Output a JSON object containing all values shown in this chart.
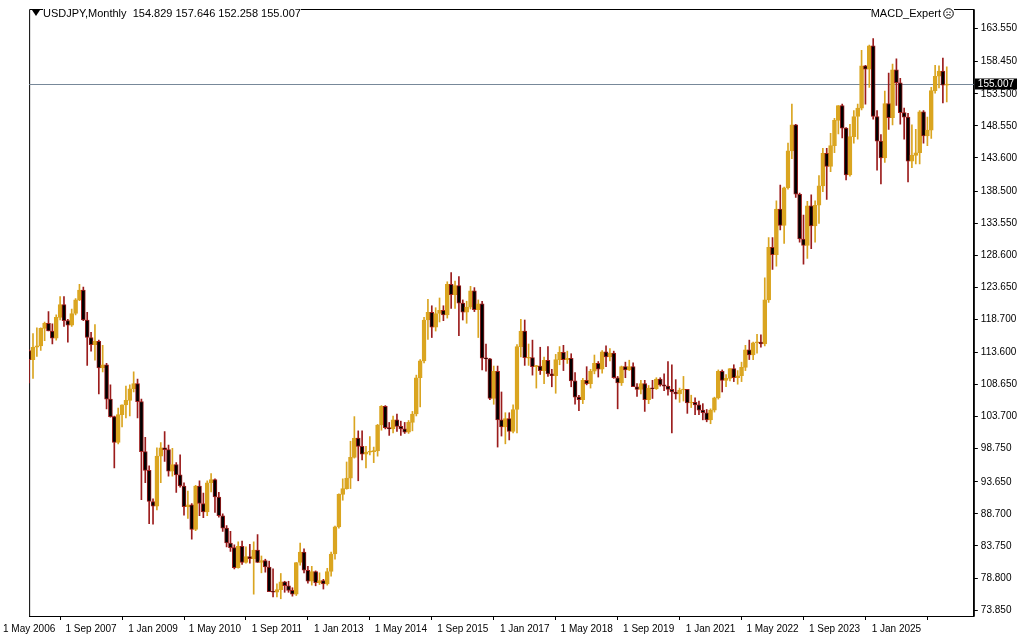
{
  "chart_data": {
    "type": "candlestick",
    "title": "USDJPY,Monthly  154.829 157.646 152.258 155.007",
    "annotations": [
      "MACD_Expert"
    ],
    "x": [
      "2006-05",
      "2006-06",
      "2006-07",
      "2006-08",
      "2006-09",
      "2006-10",
      "2006-11",
      "2006-12",
      "2007-01",
      "2007-02",
      "2007-03",
      "2007-04",
      "2007-05",
      "2007-06",
      "2007-07",
      "2007-08",
      "2007-09",
      "2007-10",
      "2007-11",
      "2007-12",
      "2008-01",
      "2008-02",
      "2008-03",
      "2008-04",
      "2008-05",
      "2008-06",
      "2008-07",
      "2008-08",
      "2008-09",
      "2008-10",
      "2008-11",
      "2008-12",
      "2009-01",
      "2009-02",
      "2009-03",
      "2009-04",
      "2009-05",
      "2009-06",
      "2009-07",
      "2009-08",
      "2009-09",
      "2009-10",
      "2009-11",
      "2009-12",
      "2010-01",
      "2010-02",
      "2010-03",
      "2010-04",
      "2010-05",
      "2010-06",
      "2010-07",
      "2010-08",
      "2010-09",
      "2010-10",
      "2010-11",
      "2010-12",
      "2011-01",
      "2011-02",
      "2011-03",
      "2011-04",
      "2011-05",
      "2011-06",
      "2011-07",
      "2011-08",
      "2011-09",
      "2011-10",
      "2011-11",
      "2011-12",
      "2012-01",
      "2012-02",
      "2012-03",
      "2012-04",
      "2012-05",
      "2012-06",
      "2012-07",
      "2012-08",
      "2012-09",
      "2012-10",
      "2012-11",
      "2012-12",
      "2013-01",
      "2013-02",
      "2013-03",
      "2013-04",
      "2013-05",
      "2013-06",
      "2013-07",
      "2013-08",
      "2013-09",
      "2013-10",
      "2013-11",
      "2013-12",
      "2014-01",
      "2014-02",
      "2014-03",
      "2014-04",
      "2014-05",
      "2014-06",
      "2014-07",
      "2014-08",
      "2014-09",
      "2014-10",
      "2014-11",
      "2014-12",
      "2015-01",
      "2015-02",
      "2015-03",
      "2015-04",
      "2015-05",
      "2015-06",
      "2015-07",
      "2015-08",
      "2015-09",
      "2015-10",
      "2015-11",
      "2015-12",
      "2016-01",
      "2016-02",
      "2016-03",
      "2016-04",
      "2016-05",
      "2016-06",
      "2016-07",
      "2016-08",
      "2016-09",
      "2016-10",
      "2016-11",
      "2016-12",
      "2017-01",
      "2017-02",
      "2017-03",
      "2017-04",
      "2017-05",
      "2017-06",
      "2017-07",
      "2017-08",
      "2017-09",
      "2017-10",
      "2017-11",
      "2017-12",
      "2018-01",
      "2018-02",
      "2018-03",
      "2018-04",
      "2018-05",
      "2018-06",
      "2018-07",
      "2018-08",
      "2018-09",
      "2018-10",
      "2018-11",
      "2018-12",
      "2019-01",
      "2019-02",
      "2019-03",
      "2019-04",
      "2019-05",
      "2019-06",
      "2019-07",
      "2019-08",
      "2019-09",
      "2019-10",
      "2019-11",
      "2019-12",
      "2020-01",
      "2020-02",
      "2020-03",
      "2020-04",
      "2020-05",
      "2020-06",
      "2020-07",
      "2020-08",
      "2020-09",
      "2020-10",
      "2020-11",
      "2020-12",
      "2021-01",
      "2021-02",
      "2021-03",
      "2021-04",
      "2021-05",
      "2021-06",
      "2021-07",
      "2021-08",
      "2021-09",
      "2021-10",
      "2021-11",
      "2021-12",
      "2022-01",
      "2022-02",
      "2022-03",
      "2022-04",
      "2022-05",
      "2022-06",
      "2022-07",
      "2022-08",
      "2022-09",
      "2022-10",
      "2022-11",
      "2022-12",
      "2023-01",
      "2023-02",
      "2023-03",
      "2023-04",
      "2023-05",
      "2023-06",
      "2023-07",
      "2023-08",
      "2023-09",
      "2023-10",
      "2023-11",
      "2023-12",
      "2024-01",
      "2024-02",
      "2024-03",
      "2024-04",
      "2024-05",
      "2024-06",
      "2024-07",
      "2024-08",
      "2024-09",
      "2024-10",
      "2024-11",
      "2024-12",
      "2025-01",
      "2025-02",
      "2025-03",
      "2025-04",
      "2025-05",
      "2025-06",
      "2025-07",
      "2025-08",
      "2025-09",
      "2025-10",
      "2025-11",
      "2025-12",
      "2026-01",
      "2026-02"
    ],
    "ohlc": [
      [
        113.9,
        114.0,
        108.9,
        112.5
      ],
      [
        112.5,
        116.5,
        109.6,
        114.4
      ],
      [
        114.4,
        117.4,
        113.0,
        114.6
      ],
      [
        114.6,
        117.4,
        113.9,
        117.3
      ],
      [
        117.3,
        118.3,
        115.4,
        118.1
      ],
      [
        118.1,
        119.9,
        116.9,
        116.9
      ],
      [
        116.9,
        118.0,
        114.9,
        115.8
      ],
      [
        115.8,
        119.4,
        115.5,
        119.0
      ],
      [
        119.0,
        122.2,
        118.6,
        121.0
      ],
      [
        121.0,
        122.2,
        117.6,
        118.5
      ],
      [
        118.5,
        118.7,
        115.2,
        117.8
      ],
      [
        117.8,
        120.3,
        117.6,
        119.6
      ],
      [
        119.6,
        121.9,
        119.4,
        121.7
      ],
      [
        121.7,
        124.1,
        121.6,
        123.2
      ],
      [
        123.2,
        123.7,
        118.5,
        118.6
      ],
      [
        118.6,
        119.8,
        111.6,
        115.9
      ],
      [
        115.9,
        116.7,
        113.8,
        114.8
      ],
      [
        114.8,
        117.9,
        112.4,
        115.3
      ],
      [
        115.3,
        115.5,
        107.2,
        111.2
      ],
      [
        111.2,
        114.7,
        110.6,
        111.7
      ],
      [
        111.7,
        111.9,
        104.9,
        106.4
      ],
      [
        106.4,
        108.6,
        103.6,
        103.7
      ],
      [
        103.7,
        103.8,
        95.8,
        99.7
      ],
      [
        99.7,
        105.0,
        99.5,
        104.0
      ],
      [
        104.0,
        105.5,
        102.1,
        105.5
      ],
      [
        105.5,
        108.4,
        103.5,
        106.2
      ],
      [
        106.2,
        108.6,
        103.8,
        108.0
      ],
      [
        108.0,
        110.6,
        107.5,
        108.8
      ],
      [
        108.8,
        109.5,
        103.5,
        106.0
      ],
      [
        106.0,
        106.4,
        90.9,
        98.3
      ],
      [
        98.3,
        100.5,
        93.5,
        95.4
      ],
      [
        95.4,
        96.1,
        87.2,
        90.6
      ],
      [
        90.6,
        91.0,
        87.1,
        89.9
      ],
      [
        89.9,
        98.9,
        89.3,
        97.6
      ],
      [
        97.6,
        99.7,
        93.5,
        98.9
      ],
      [
        98.9,
        101.4,
        96.8,
        98.6
      ],
      [
        98.6,
        99.3,
        94.5,
        95.3
      ],
      [
        95.3,
        98.8,
        94.5,
        96.3
      ],
      [
        96.3,
        96.6,
        92.0,
        94.7
      ],
      [
        94.7,
        97.8,
        92.8,
        93.0
      ],
      [
        93.0,
        93.5,
        88.5,
        89.8
      ],
      [
        89.8,
        92.2,
        88.0,
        90.1
      ],
      [
        90.1,
        90.3,
        84.8,
        86.3
      ],
      [
        86.3,
        93.1,
        86.1,
        93.0
      ],
      [
        93.0,
        93.8,
        88.4,
        90.3
      ],
      [
        90.3,
        91.9,
        88.1,
        89.0
      ],
      [
        89.0,
        93.8,
        88.4,
        93.5
      ],
      [
        93.5,
        94.9,
        92.1,
        94.0
      ],
      [
        94.0,
        94.1,
        88.9,
        91.3
      ],
      [
        91.3,
        92.0,
        88.2,
        88.4
      ],
      [
        88.4,
        88.7,
        86.0,
        86.5
      ],
      [
        86.5,
        86.9,
        83.6,
        84.2
      ],
      [
        84.2,
        86.0,
        82.9,
        83.5
      ],
      [
        83.5,
        83.9,
        80.2,
        80.4
      ],
      [
        80.4,
        84.4,
        80.3,
        83.7
      ],
      [
        83.7,
        84.5,
        80.9,
        81.2
      ],
      [
        81.2,
        83.6,
        81.1,
        82.1
      ],
      [
        82.1,
        84.0,
        81.1,
        81.8
      ],
      [
        81.8,
        84.4,
        76.3,
        83.1
      ],
      [
        83.1,
        85.5,
        81.2,
        81.2
      ],
      [
        81.2,
        82.2,
        79.6,
        81.5
      ],
      [
        81.5,
        81.7,
        79.7,
        80.5
      ],
      [
        80.5,
        81.4,
        76.7,
        76.7
      ],
      [
        76.7,
        80.2,
        75.9,
        76.6
      ],
      [
        76.6,
        77.9,
        75.9,
        77.0
      ],
      [
        77.0,
        79.5,
        75.6,
        78.2
      ],
      [
        78.2,
        78.3,
        76.6,
        77.6
      ],
      [
        77.6,
        78.3,
        76.6,
        76.9
      ],
      [
        76.9,
        77.3,
        76.0,
        76.3
      ],
      [
        76.3,
        81.2,
        76.1,
        81.2
      ],
      [
        81.2,
        84.2,
        80.8,
        82.8
      ],
      [
        82.8,
        83.3,
        79.6,
        80.0
      ],
      [
        80.0,
        80.6,
        78.0,
        78.3
      ],
      [
        78.3,
        80.6,
        77.7,
        79.8
      ],
      [
        79.8,
        79.9,
        77.6,
        78.1
      ],
      [
        78.1,
        79.6,
        77.8,
        78.4
      ],
      [
        78.4,
        78.6,
        77.1,
        77.9
      ],
      [
        77.9,
        80.3,
        77.7,
        79.8
      ],
      [
        79.8,
        82.8,
        79.1,
        82.5
      ],
      [
        82.5,
        86.8,
        81.7,
        86.7
      ],
      [
        86.7,
        91.8,
        86.5,
        91.7
      ],
      [
        91.7,
        94.1,
        90.8,
        92.6
      ],
      [
        92.6,
        96.7,
        92.5,
        94.2
      ],
      [
        94.2,
        99.9,
        92.6,
        97.4
      ],
      [
        97.4,
        103.7,
        97.3,
        100.4
      ],
      [
        100.4,
        101.5,
        93.8,
        99.1
      ],
      [
        99.1,
        101.5,
        97.0,
        97.9
      ],
      [
        97.9,
        99.1,
        95.8,
        98.2
      ],
      [
        98.2,
        100.6,
        97.8,
        98.3
      ],
      [
        98.3,
        99.0,
        96.6,
        98.4
      ],
      [
        98.4,
        102.5,
        97.6,
        102.4
      ],
      [
        102.4,
        105.4,
        101.6,
        105.3
      ],
      [
        105.3,
        105.4,
        101.8,
        102.0
      ],
      [
        102.0,
        102.8,
        100.8,
        101.8
      ],
      [
        101.8,
        103.8,
        101.2,
        103.2
      ],
      [
        103.2,
        104.1,
        101.4,
        102.2
      ],
      [
        102.2,
        103.0,
        100.8,
        101.8
      ],
      [
        101.8,
        102.8,
        101.1,
        101.3
      ],
      [
        101.3,
        103.1,
        101.1,
        102.8
      ],
      [
        102.8,
        104.5,
        101.5,
        104.1
      ],
      [
        104.1,
        110.1,
        103.8,
        109.7
      ],
      [
        109.7,
        112.5,
        105.2,
        112.3
      ],
      [
        112.3,
        119.0,
        112.0,
        118.6
      ],
      [
        118.6,
        121.8,
        115.6,
        119.8
      ],
      [
        119.8,
        120.8,
        115.9,
        117.5
      ],
      [
        117.5,
        120.5,
        116.9,
        119.6
      ],
      [
        119.6,
        122.0,
        118.3,
        120.1
      ],
      [
        120.1,
        120.8,
        118.5,
        119.4
      ],
      [
        119.4,
        124.5,
        118.9,
        124.1
      ],
      [
        124.1,
        125.9,
        120.4,
        122.5
      ],
      [
        122.5,
        124.6,
        120.4,
        123.9
      ],
      [
        123.9,
        125.3,
        116.2,
        121.2
      ],
      [
        121.2,
        121.7,
        118.6,
        119.8
      ],
      [
        119.8,
        121.5,
        118.1,
        120.6
      ],
      [
        120.6,
        123.8,
        120.3,
        123.1
      ],
      [
        123.1,
        123.6,
        119.9,
        120.2
      ],
      [
        120.2,
        121.7,
        115.9,
        121.1
      ],
      [
        121.1,
        121.5,
        110.9,
        112.7
      ],
      [
        112.7,
        114.9,
        110.7,
        112.6
      ],
      [
        112.6,
        112.7,
        106.3,
        106.5
      ],
      [
        106.5,
        111.5,
        105.6,
        110.7
      ],
      [
        110.7,
        111.5,
        99.0,
        103.2
      ],
      [
        103.2,
        107.5,
        100.7,
        102.1
      ],
      [
        102.1,
        104.3,
        99.5,
        103.4
      ],
      [
        103.4,
        104.3,
        100.1,
        101.4
      ],
      [
        101.4,
        105.5,
        101.2,
        104.8
      ],
      [
        104.8,
        114.8,
        101.2,
        114.5
      ],
      [
        114.5,
        118.7,
        112.9,
        116.9
      ],
      [
        116.9,
        118.6,
        111.6,
        112.8
      ],
      [
        112.7,
        114.9,
        111.6,
        112.8
      ],
      [
        112.8,
        115.5,
        110.1,
        111.4
      ],
      [
        111.4,
        111.6,
        108.1,
        111.5
      ],
      [
        111.5,
        114.4,
        110.2,
        110.8
      ],
      [
        110.8,
        112.9,
        108.8,
        112.4
      ],
      [
        112.4,
        114.5,
        109.9,
        110.3
      ],
      [
        110.3,
        111.0,
        108.3,
        110.0
      ],
      [
        110.0,
        113.3,
        107.3,
        112.5
      ],
      [
        112.5,
        114.5,
        111.7,
        113.6
      ],
      [
        113.6,
        114.7,
        110.8,
        112.5
      ],
      [
        112.5,
        113.8,
        111.9,
        112.7
      ],
      [
        112.7,
        113.4,
        108.3,
        109.2
      ],
      [
        109.2,
        110.5,
        105.6,
        106.7
      ],
      [
        106.7,
        107.0,
        104.6,
        106.3
      ],
      [
        106.3,
        109.6,
        105.7,
        109.3
      ],
      [
        109.3,
        111.4,
        108.6,
        108.8
      ],
      [
        108.8,
        111.0,
        108.1,
        110.7
      ],
      [
        110.7,
        113.2,
        110.3,
        111.9
      ],
      [
        111.9,
        112.2,
        109.8,
        111.0
      ],
      [
        111.0,
        113.9,
        110.4,
        113.7
      ],
      [
        113.7,
        114.6,
        111.4,
        112.9
      ],
      [
        112.9,
        114.2,
        112.3,
        113.5
      ],
      [
        113.5,
        113.8,
        109.6,
        109.7
      ],
      [
        109.7,
        109.9,
        104.9,
        108.9
      ],
      [
        108.9,
        111.5,
        108.5,
        111.4
      ],
      [
        111.4,
        112.1,
        109.7,
        110.9
      ],
      [
        110.9,
        112.4,
        110.8,
        111.4
      ],
      [
        111.4,
        112.0,
        108.3,
        108.3
      ],
      [
        108.3,
        108.8,
        106.8,
        107.9
      ],
      [
        107.9,
        109.3,
        107.2,
        108.8
      ],
      [
        108.8,
        109.3,
        104.5,
        106.3
      ],
      [
        106.3,
        108.5,
        105.7,
        108.1
      ],
      [
        108.1,
        109.3,
        106.5,
        108.0
      ],
      [
        108.0,
        109.7,
        107.9,
        109.5
      ],
      [
        109.5,
        109.7,
        108.4,
        108.6
      ],
      [
        108.6,
        110.3,
        107.7,
        108.4
      ],
      [
        108.4,
        112.2,
        107.0,
        107.9
      ],
      [
        107.9,
        111.7,
        101.2,
        107.5
      ],
      [
        107.5,
        109.4,
        106.4,
        107.2
      ],
      [
        107.2,
        108.1,
        105.9,
        107.8
      ],
      [
        107.8,
        109.9,
        106.1,
        107.9
      ],
      [
        107.9,
        107.9,
        104.2,
        105.8
      ],
      [
        105.8,
        107.0,
        105.1,
        105.9
      ],
      [
        105.9,
        106.6,
        104.0,
        105.5
      ],
      [
        105.5,
        106.1,
        104.0,
        104.7
      ],
      [
        104.7,
        105.7,
        103.2,
        104.3
      ],
      [
        104.3,
        104.8,
        102.9,
        103.2
      ],
      [
        103.2,
        104.9,
        102.6,
        104.7
      ],
      [
        104.7,
        106.7,
        104.4,
        106.6
      ],
      [
        106.6,
        110.9,
        106.4,
        110.7
      ],
      [
        110.7,
        110.9,
        107.5,
        109.3
      ],
      [
        109.3,
        110.2,
        108.3,
        109.6
      ],
      [
        109.6,
        111.1,
        109.2,
        111.1
      ],
      [
        111.1,
        111.7,
        109.1,
        109.7
      ],
      [
        109.7,
        110.8,
        108.7,
        110.0
      ],
      [
        110.0,
        112.1,
        109.1,
        111.3
      ],
      [
        111.3,
        114.7,
        110.8,
        114.0
      ],
      [
        114.0,
        115.5,
        112.5,
        113.2
      ],
      [
        113.2,
        115.2,
        112.5,
        115.1
      ],
      [
        115.1,
        116.4,
        113.5,
        115.2
      ],
      [
        115.2,
        116.3,
        114.4,
        114.9
      ],
      [
        114.9,
        125.1,
        114.6,
        121.7
      ],
      [
        121.7,
        131.3,
        121.3,
        129.8
      ],
      [
        129.8,
        131.3,
        126.4,
        128.7
      ],
      [
        128.7,
        137.0,
        126.9,
        135.7
      ],
      [
        135.7,
        139.4,
        132.5,
        133.2
      ],
      [
        133.2,
        139.1,
        130.4,
        139.0
      ],
      [
        139.0,
        145.9,
        138.8,
        144.7
      ],
      [
        144.7,
        151.9,
        143.5,
        148.7
      ],
      [
        148.7,
        148.8,
        137.5,
        138.0
      ],
      [
        138.0,
        138.2,
        130.6,
        131.1
      ],
      [
        131.1,
        134.8,
        127.2,
        130.1
      ],
      [
        130.1,
        136.9,
        128.1,
        136.2
      ],
      [
        136.2,
        137.9,
        129.6,
        133.1
      ],
      [
        133.1,
        137.0,
        130.6,
        136.3
      ],
      [
        136.3,
        140.9,
        133.5,
        139.3
      ],
      [
        139.3,
        145.1,
        138.4,
        144.3
      ],
      [
        144.3,
        145.1,
        137.2,
        142.3
      ],
      [
        142.3,
        147.4,
        141.5,
        145.5
      ],
      [
        145.5,
        149.7,
        144.4,
        149.4
      ],
      [
        149.4,
        151.7,
        147.3,
        151.7
      ],
      [
        151.7,
        151.9,
        146.7,
        148.2
      ],
      [
        148.2,
        148.3,
        140.2,
        141.0
      ],
      [
        141.0,
        148.8,
        140.8,
        146.9
      ],
      [
        146.9,
        150.9,
        145.9,
        150.0
      ],
      [
        150.0,
        151.9,
        146.5,
        151.3
      ],
      [
        151.3,
        160.2,
        151.0,
        157.8
      ],
      [
        157.8,
        157.9,
        151.9,
        157.3
      ],
      [
        157.3,
        161.0,
        154.5,
        160.9
      ],
      [
        160.9,
        162.0,
        149.6,
        150.0
      ],
      [
        150.0,
        150.9,
        141.7,
        146.2
      ],
      [
        146.2,
        147.2,
        139.6,
        143.6
      ],
      [
        143.6,
        153.9,
        142.9,
        152.0
      ],
      [
        152.0,
        156.7,
        148.0,
        149.8
      ],
      [
        149.8,
        158.1,
        148.7,
        157.2
      ],
      [
        157.2,
        158.9,
        151.7,
        155.2
      ],
      [
        155.2,
        155.9,
        148.8,
        150.6
      ],
      [
        150.6,
        151.3,
        146.5,
        149.9
      ],
      [
        149.9,
        150.5,
        139.9,
        143.1
      ],
      [
        143.1,
        148.7,
        142.1,
        144.0
      ],
      [
        144.0,
        148.0,
        142.7,
        144.4
      ],
      [
        144.4,
        150.9,
        142.7,
        150.7
      ],
      [
        150.7,
        150.9,
        145.9,
        147.0
      ],
      [
        147.0,
        149.9,
        145.5,
        147.9
      ],
      [
        147.9,
        154.5,
        146.6,
        154.0
      ],
      [
        154.0,
        157.9,
        153.6,
        156.2
      ],
      [
        156.2,
        157.8,
        154.4,
        157.0
      ],
      [
        157.0,
        159.0,
        152.1,
        154.829
      ],
      [
        154.829,
        157.646,
        152.258,
        155.007
      ]
    ],
    "colors": [
      "#9b1c1c",
      "#daa520",
      "#daa520",
      "#daa520",
      "#daa520",
      "#9b1c1c",
      "#9b1c1c",
      "#daa520",
      "#daa520",
      "#9b1c1c",
      "#9b1c1c",
      "#daa520",
      "#daa520",
      "#daa520",
      "#9b1c1c",
      "#9b1c1c",
      "#9b1c1c",
      "#daa520",
      "#9b1c1c",
      "#daa520",
      "#9b1c1c",
      "#9b1c1c",
      "#9b1c1c",
      "#daa520",
      "#daa520",
      "#daa520",
      "#daa520",
      "#daa520",
      "#9b1c1c",
      "#9b1c1c",
      "#9b1c1c",
      "#9b1c1c",
      "#9b1c1c",
      "#daa520",
      "#daa520",
      "#9b1c1c",
      "#9b1c1c",
      "#daa520",
      "#9b1c1c",
      "#9b1c1c",
      "#9b1c1c",
      "#daa520",
      "#9b1c1c",
      "#daa520",
      "#9b1c1c",
      "#9b1c1c",
      "#daa520",
      "#daa520",
      "#9b1c1c",
      "#9b1c1c",
      "#9b1c1c",
      "#9b1c1c",
      "#9b1c1c",
      "#9b1c1c",
      "#daa520",
      "#9b1c1c",
      "#daa520",
      "#9b1c1c",
      "#daa520",
      "#9b1c1c",
      "#daa520",
      "#9b1c1c",
      "#9b1c1c",
      "#9b1c1c",
      "#daa520",
      "#daa520",
      "#9b1c1c",
      "#9b1c1c",
      "#9b1c1c",
      "#daa520",
      "#daa520",
      "#9b1c1c",
      "#9b1c1c",
      "#daa520",
      "#9b1c1c",
      "#daa520",
      "#9b1c1c",
      "#daa520",
      "#daa520",
      "#daa520",
      "#daa520",
      "#daa520",
      "#daa520",
      "#daa520",
      "#daa520",
      "#9b1c1c",
      "#9b1c1c",
      "#daa520",
      "#daa520",
      "#daa520",
      "#daa520",
      "#daa520",
      "#9b1c1c",
      "#9b1c1c",
      "#daa520",
      "#9b1c1c",
      "#9b1c1c",
      "#9b1c1c",
      "#daa520",
      "#daa520",
      "#daa520",
      "#daa520",
      "#daa520",
      "#daa520",
      "#9b1c1c",
      "#daa520",
      "#daa520",
      "#9b1c1c",
      "#daa520",
      "#9b1c1c",
      "#daa520",
      "#9b1c1c",
      "#9b1c1c",
      "#daa520",
      "#daa520",
      "#9b1c1c",
      "#daa520",
      "#9b1c1c",
      "#9b1c1c",
      "#9b1c1c",
      "#daa520",
      "#9b1c1c",
      "#9b1c1c",
      "#daa520",
      "#9b1c1c",
      "#daa520",
      "#daa520",
      "#daa520",
      "#9b1c1c",
      "#daa520",
      "#9b1c1c",
      "#daa520",
      "#9b1c1c",
      "#daa520",
      "#9b1c1c",
      "#9b1c1c",
      "#daa520",
      "#daa520",
      "#9b1c1c",
      "#daa520",
      "#9b1c1c",
      "#9b1c1c",
      "#9b1c1c",
      "#daa520",
      "#9b1c1c",
      "#daa520",
      "#daa520",
      "#9b1c1c",
      "#daa520",
      "#9b1c1c",
      "#daa520",
      "#9b1c1c",
      "#9b1c1c",
      "#daa520",
      "#9b1c1c",
      "#daa520",
      "#9b1c1c",
      "#9b1c1c",
      "#daa520",
      "#9b1c1c",
      "#daa520",
      "#9b1c1c",
      "#daa520",
      "#9b1c1c",
      "#9b1c1c",
      "#9b1c1c",
      "#9b1c1c",
      "#9b1c1c",
      "#daa520",
      "#daa520",
      "#9b1c1c",
      "#daa520",
      "#9b1c1c",
      "#9b1c1c",
      "#9b1c1c",
      "#9b1c1c",
      "#daa520",
      "#daa520",
      "#daa520",
      "#9b1c1c",
      "#daa520",
      "#daa520",
      "#9b1c1c",
      "#daa520",
      "#daa520",
      "#daa520",
      "#9b1c1c",
      "#daa520",
      "#daa520",
      "#9b1c1c",
      "#daa520",
      "#daa520",
      "#9b1c1c",
      "#daa520",
      "#9b1c1c",
      "#daa520",
      "#daa520",
      "#daa520",
      "#9b1c1c",
      "#9b1c1c",
      "#9b1c1c",
      "#daa520",
      "#9b1c1c",
      "#daa520",
      "#daa520",
      "#daa520",
      "#9b1c1c",
      "#daa520",
      "#daa520",
      "#daa520",
      "#9b1c1c",
      "#9b1c1c",
      "#daa520",
      "#daa520",
      "#daa520",
      "#daa520",
      "#9b1c1c",
      "#daa520",
      "#9b1c1c",
      "#9b1c1c",
      "#9b1c1c",
      "#daa520",
      "#9b1c1c",
      "#daa520",
      "#9b1c1c",
      "#9b1c1c",
      "#9b1c1c",
      "#9b1c1c",
      "#daa520",
      "#daa520",
      "#daa520",
      "#9b1c1c",
      "#daa520",
      "#daa520",
      "#daa520",
      "#daa520",
      "#9b1c1c",
      "#daa520"
    ],
    "xlim": [
      "2006-05",
      "2026-09"
    ],
    "xticks": [
      {
        "value": "2006-05",
        "label": "1 May 2006"
      },
      {
        "value": "2007-09",
        "label": "1 Sep 2007"
      },
      {
        "value": "2009-01",
        "label": "1 Jan 2009"
      },
      {
        "value": "2010-05",
        "label": "1 May 2010"
      },
      {
        "value": "2011-09",
        "label": "1 Sep 2011"
      },
      {
        "value": "2013-01",
        "label": "1 Jan 2013"
      },
      {
        "value": "2014-05",
        "label": "1 May 2014"
      },
      {
        "value": "2015-09",
        "label": "1 Sep 2015"
      },
      {
        "value": "2017-01",
        "label": "1 Jan 2017"
      },
      {
        "value": "2018-05",
        "label": "1 May 2018"
      },
      {
        "value": "2019-09",
        "label": "1 Sep 2019"
      },
      {
        "value": "2021-01",
        "label": "1 Jan 2021"
      },
      {
        "value": "2022-05",
        "label": "1 May 2022"
      },
      {
        "value": "2023-09",
        "label": "1 Sep 2023"
      },
      {
        "value": "2025-01",
        "label": "1 Jan 2025"
      }
    ],
    "ylim": [
      72.94,
      166.58
    ],
    "yticks": [
      {
        "value": 163.55,
        "label": "163.550"
      },
      {
        "value": 158.45,
        "label": "158.450"
      },
      {
        "value": 153.5,
        "label": "153.500"
      },
      {
        "value": 148.55,
        "label": "148.550"
      },
      {
        "value": 143.6,
        "label": "143.600"
      },
      {
        "value": 138.5,
        "label": "138.500"
      },
      {
        "value": 133.55,
        "label": "133.550"
      },
      {
        "value": 128.6,
        "label": "128.600"
      },
      {
        "value": 123.65,
        "label": "123.650"
      },
      {
        "value": 118.7,
        "label": "118.700"
      },
      {
        "value": 113.6,
        "label": "113.600"
      },
      {
        "value": 108.65,
        "label": "108.650"
      },
      {
        "value": 103.7,
        "label": "103.700"
      },
      {
        "value": 98.75,
        "label": "98.750"
      },
      {
        "value": 93.65,
        "label": "93.650"
      },
      {
        "value": 88.7,
        "label": "88.700"
      },
      {
        "value": 83.75,
        "label": "83.750"
      },
      {
        "value": 78.8,
        "label": "78.800"
      },
      {
        "value": 73.85,
        "label": "73.850"
      }
    ],
    "ref_lines": [
      {
        "axis": "y",
        "value": 155.007,
        "label": "155.007",
        "color": "#778899"
      }
    ]
  }
}
